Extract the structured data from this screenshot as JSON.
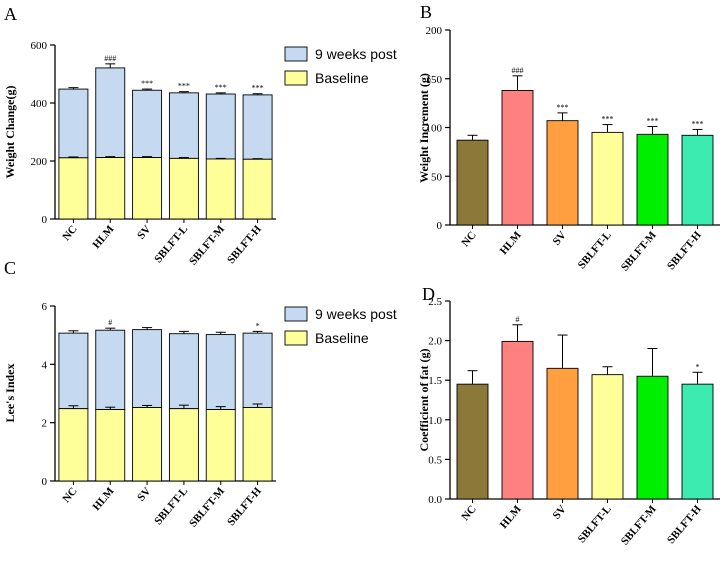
{
  "chart_data": [
    {
      "panel": "A",
      "type": "bar",
      "stacked": true,
      "ylabel": "Weight Change(g)",
      "ylim": [
        0,
        600
      ],
      "yticks": [
        0,
        200,
        400,
        600
      ],
      "categories": [
        "NC",
        "HLM",
        "SV",
        "SBLFT-L",
        "SBLFT-M",
        "SBLFT-H"
      ],
      "series": [
        {
          "name": "Baseline",
          "color": "#ffff99",
          "values": [
            211,
            212,
            212,
            209,
            207,
            206
          ],
          "errors": [
            3,
            3,
            3,
            3,
            2,
            2
          ]
        },
        {
          "name": "9 weeks post",
          "color": "#c5d9f1",
          "totals": [
            448,
            521,
            444,
            435,
            431,
            428
          ],
          "errors": [
            5,
            14,
            4,
            4,
            4,
            4
          ]
        }
      ],
      "annotations": [
        "",
        "###",
        "***",
        "***",
        "***",
        "***"
      ],
      "legend": [
        "9 weeks post",
        "Baseline"
      ]
    },
    {
      "panel": "B",
      "type": "bar",
      "ylabel": "Weight Increment (g)",
      "ylim": [
        0,
        200
      ],
      "yticks": [
        0,
        50,
        100,
        150,
        200
      ],
      "categories": [
        "NC",
        "HLM",
        "SV",
        "SBLFT-L",
        "SBLFT-M",
        "SBLFT-H"
      ],
      "values": [
        87,
        138,
        107,
        95,
        93,
        92
      ],
      "errors": [
        5,
        15,
        8,
        8,
        8,
        6
      ],
      "colors": [
        "#8c7838",
        "#fe8080",
        "#ff9f40",
        "#ffff99",
        "#00ee00",
        "#3bebb0"
      ],
      "annotations": [
        "",
        "###",
        "***",
        "***",
        "***",
        "***"
      ]
    },
    {
      "panel": "C",
      "type": "bar",
      "stacked": true,
      "ylabel": "Lee's Index",
      "ylim": [
        0,
        6
      ],
      "yticks": [
        0,
        2,
        4,
        6
      ],
      "categories": [
        "NC",
        "HLM",
        "SV",
        "SBLFT-L",
        "SBLFT-M",
        "SBLFT-H"
      ],
      "series": [
        {
          "name": "Baseline",
          "color": "#ffff99",
          "values": [
            2.48,
            2.45,
            2.52,
            2.48,
            2.45,
            2.52
          ],
          "errors": [
            0.1,
            0.08,
            0.07,
            0.12,
            0.1,
            0.12
          ]
        },
        {
          "name": "9 weeks post",
          "color": "#c5d9f1",
          "totals": [
            5.07,
            5.17,
            5.19,
            5.05,
            5.02,
            5.07
          ],
          "errors": [
            0.08,
            0.07,
            0.07,
            0.08,
            0.08,
            0.06
          ]
        }
      ],
      "annotations": [
        "",
        "#",
        "",
        "",
        "",
        "*"
      ],
      "legend": [
        "9 weeks post",
        "Baseline"
      ]
    },
    {
      "panel": "D",
      "type": "bar",
      "ylabel": "Coefficient of fat (g)",
      "ylim": [
        0,
        2.5
      ],
      "yticks": [
        0.0,
        0.5,
        1.0,
        1.5,
        2.0,
        2.5
      ],
      "categories": [
        "NC",
        "HLM",
        "SV",
        "SBLFT-L",
        "SBLFT-M",
        "SBLFT-H"
      ],
      "values": [
        1.45,
        1.99,
        1.65,
        1.57,
        1.55,
        1.45
      ],
      "errors": [
        0.17,
        0.21,
        0.42,
        0.1,
        0.35,
        0.15
      ],
      "colors": [
        "#8c7838",
        "#fe8080",
        "#ff9f40",
        "#ffff99",
        "#00ee00",
        "#3bebb0"
      ],
      "annotations": [
        "",
        "#",
        "",
        "",
        "",
        "*"
      ]
    }
  ]
}
